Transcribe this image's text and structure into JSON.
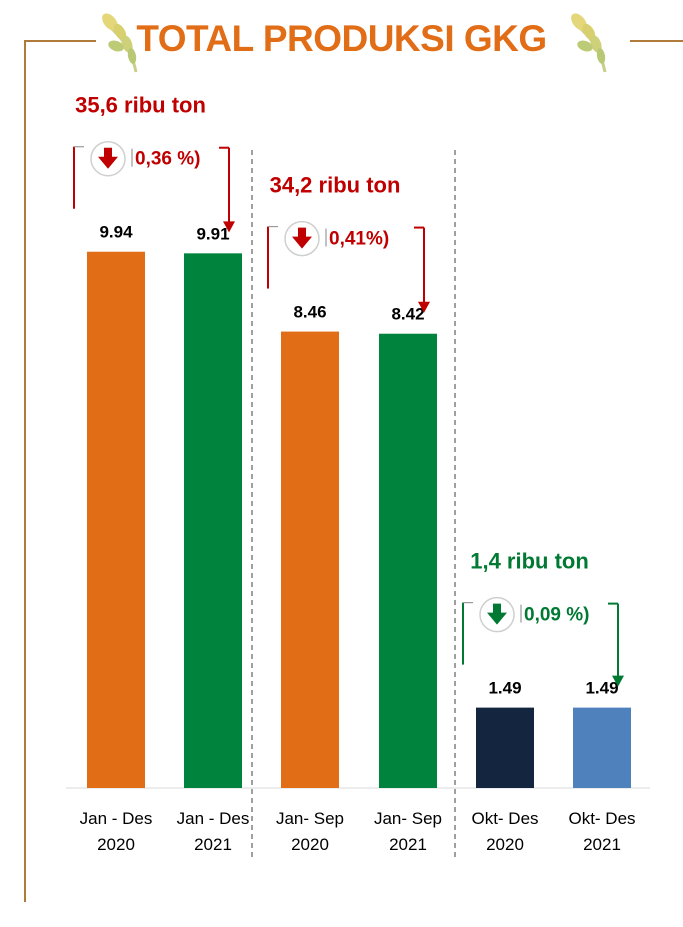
{
  "title": "TOTAL PRODUKSI GKG",
  "colors": {
    "title": "#E26D17",
    "decline_red": "#C00000",
    "decline_green": "#007A33",
    "frame": "#B07A3A",
    "divider": "#808080"
  },
  "icons": [
    "wheat-icon",
    "down-arrow-circle-icon"
  ],
  "chart_data": {
    "type": "bar",
    "categories": [
      [
        "Jan - Des",
        "2020"
      ],
      [
        "Jan - Des",
        "2021"
      ],
      [
        "Jan- Sep",
        "2020"
      ],
      [
        "Jan- Sep",
        "2021"
      ],
      [
        "Okt- Des",
        "2020"
      ],
      [
        "Okt- Des",
        "2021"
      ]
    ],
    "values": [
      9.94,
      9.91,
      8.46,
      8.42,
      1.49,
      1.49
    ],
    "value_labels": [
      "9.94",
      "9.91",
      "8.46",
      "8.42",
      "1.49",
      "1.49"
    ],
    "bar_colors": [
      "#E26D17",
      "#00843D",
      "#E26D17",
      "#00843D",
      "#14253F",
      "#4F81BD"
    ],
    "ylim": [
      0,
      11.64
    ],
    "grid": false,
    "annotations": [
      {
        "group": 0,
        "text": "35,6 ribu ton",
        "percent": "0,36 %)",
        "color": "#C00000"
      },
      {
        "group": 1,
        "text": "34,2 ribu ton",
        "percent": "0,41%)",
        "color": "#C00000"
      },
      {
        "group": 2,
        "text": "1,4 ribu ton",
        "percent": "0,09 %)",
        "color": "#007A33"
      }
    ]
  }
}
